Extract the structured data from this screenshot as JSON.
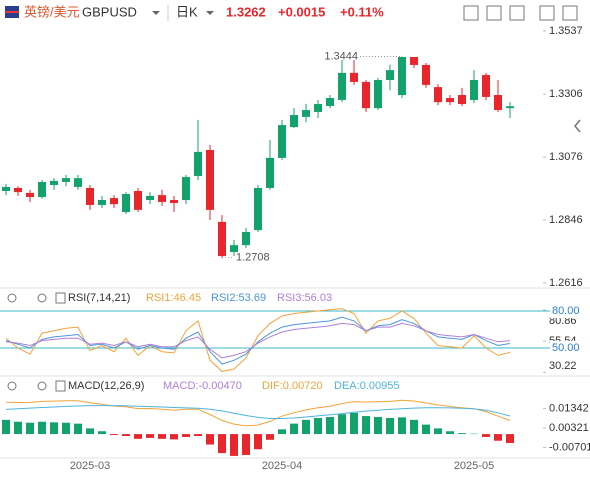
{
  "header": {
    "name": "英镑/美元",
    "symbol": "GBPUSD",
    "period": "日K",
    "price": "1.3262",
    "change": "+0.0015",
    "change_pct": "+0.11%"
  },
  "chart_data": [
    {
      "type": "candlestick",
      "up_color": "#13a26b",
      "down_color": "#e8262c",
      "categories": [
        null,
        null,
        null,
        null,
        null,
        null,
        null,
        "2025-03",
        null,
        null,
        null,
        null,
        null,
        null,
        null,
        null,
        null,
        null,
        null,
        null,
        null,
        null,
        null,
        "2025-04",
        null,
        null,
        null,
        null,
        null,
        null,
        null,
        null,
        null,
        null,
        null,
        null,
        null,
        null,
        null,
        "2025-05",
        null,
        null,
        null
      ],
      "open": [
        1.2952,
        1.2963,
        1.2945,
        1.293,
        1.2974,
        1.2985,
        1.2967,
        1.2963,
        1.2901,
        1.2926,
        1.2875,
        1.2952,
        1.2919,
        1.2937,
        1.2919,
        1.2919,
        1.3007,
        1.3102,
        1.2839,
        1.2729,
        1.2754,
        1.2809,
        1.2963,
        1.3073,
        1.3186,
        1.3223,
        1.3241,
        1.3263,
        1.3285,
        1.3384,
        1.3351,
        1.3255,
        1.3358,
        1.3303,
        1.3442,
        1.3413,
        1.3332,
        1.3292,
        1.3303,
        1.3285,
        1.3376,
        1.3303,
        1.3255
      ],
      "high": [
        1.2978,
        1.297,
        1.2956,
        1.2992,
        1.2999,
        1.3011,
        1.3011,
        1.2974,
        1.2934,
        1.2937,
        1.2948,
        1.2963,
        1.2948,
        1.2956,
        1.2934,
        1.3011,
        1.3212,
        1.312,
        1.2864,
        1.2773,
        1.2817,
        1.2974,
        1.3138,
        1.3212,
        1.3255,
        1.327,
        1.3285,
        1.3303,
        1.3431,
        1.3431,
        1.3358,
        1.3365,
        1.3413,
        1.3444,
        1.3442,
        1.342,
        1.3343,
        1.3303,
        1.3329,
        1.3394,
        1.3384,
        1.3358,
        1.3277
      ],
      "low": [
        1.2937,
        1.2934,
        1.2912,
        1.2923,
        1.2956,
        1.297,
        1.2956,
        1.2883,
        1.289,
        1.289,
        1.2868,
        1.2875,
        1.2904,
        1.2897,
        1.2875,
        1.2904,
        1.2992,
        1.2846,
        1.2708,
        1.2714,
        1.2743,
        1.2802,
        1.2956,
        1.3065,
        1.3182,
        1.3204,
        1.3219,
        1.3255,
        1.3277,
        1.334,
        1.3241,
        1.3248,
        1.3321,
        1.3292,
        1.3402,
        1.3329,
        1.3266,
        1.3266,
        1.3263,
        1.3274,
        1.3285,
        1.3241,
        1.3219
      ],
      "close": [
        1.2967,
        1.2948,
        1.293,
        1.2985,
        1.2989,
        1.2999,
        1.2999,
        1.2901,
        1.2919,
        1.2904,
        1.2941,
        1.2883,
        1.2934,
        1.2912,
        1.2908,
        1.3003,
        1.3095,
        1.2883,
        1.2714,
        1.2754,
        1.2802,
        1.2963,
        1.3073,
        1.3193,
        1.323,
        1.3248,
        1.327,
        1.3292,
        1.3384,
        1.3351,
        1.3255,
        1.3358,
        1.3394,
        1.3442,
        1.3413,
        1.334,
        1.3277,
        1.3277,
        1.327,
        1.3358,
        1.3296,
        1.3248,
        1.3262
      ],
      "ylim": [
        1.259,
        1.357
      ],
      "yticks": [
        1.3537,
        1.3306,
        1.3076,
        1.2846,
        1.2616
      ]
    },
    {
      "type": "line",
      "title": "RSI(7,14,21)",
      "ylim": [
        28.1,
        84.9
      ],
      "yticks": [
        30.22,
        55.54,
        80.86
      ],
      "levels": [
        {
          "value": 80,
          "label": "80.00"
        },
        {
          "value": 50,
          "label": "50.00"
        }
      ],
      "level_color": "#3bb8c9",
      "series": [
        {
          "name": "RSI1",
          "color": "#f2a33a",
          "values": [
            58,
            50,
            45,
            62,
            64,
            66,
            67,
            48,
            52,
            47,
            58,
            44,
            52,
            47,
            46,
            64,
            72,
            40,
            31,
            33,
            42,
            60,
            70,
            76,
            78,
            79,
            80,
            81,
            82,
            78,
            62,
            72,
            74,
            80,
            74,
            62,
            52,
            51,
            50,
            60,
            50,
            44,
            46.45
          ]
        },
        {
          "name": "RSI2",
          "color": "#4c96dc",
          "values": [
            56,
            53,
            50,
            57,
            59,
            60,
            61,
            52,
            53,
            50,
            55,
            49,
            52,
            50,
            49,
            58,
            63,
            47,
            37,
            40,
            45,
            55,
            62,
            67,
            69,
            70,
            71,
            72,
            75,
            72,
            64,
            68,
            69,
            73,
            70,
            64,
            59,
            58,
            57,
            61,
            56,
            52,
            53.69
          ]
        },
        {
          "name": "RSI3",
          "color": "#b07fd8",
          "values": [
            55,
            54,
            52,
            56,
            57,
            58,
            58,
            53,
            54,
            52,
            55,
            51,
            53,
            51,
            51,
            56,
            59,
            49,
            42,
            44,
            47,
            54,
            59,
            63,
            65,
            66,
            67,
            68,
            70,
            69,
            64,
            67,
            67,
            70,
            68,
            64,
            61,
            60,
            59,
            61,
            58,
            55,
            56.03
          ]
        }
      ]
    },
    {
      "type": "combo",
      "title": "MACD(12,26,9)",
      "ylim": [
        -0.0126,
        0.0206
      ],
      "yticks": [
        0.01342,
        0.00321,
        -0.00701
      ],
      "series": [
        {
          "name": "MACD",
          "type": "bar",
          "up_color": "#13a26b",
          "down_color": "#e8262c",
          "color": "#b07fd8",
          "values": [
            0.0075,
            0.0065,
            0.006,
            0.0065,
            0.0062,
            0.006,
            0.0055,
            0.003,
            0.0015,
            -0.0005,
            -0.001,
            -0.0025,
            -0.002,
            -0.0025,
            -0.0028,
            -0.0015,
            -0.001,
            -0.0055,
            -0.01,
            -0.0115,
            -0.011,
            -0.008,
            -0.003,
            0.0025,
            0.0055,
            0.0075,
            0.0085,
            0.009,
            0.0105,
            0.0112,
            0.0095,
            0.009,
            0.0085,
            0.0088,
            0.0075,
            0.005,
            0.003,
            0.0015,
            0.0005,
            0.0002,
            -0.0015,
            -0.0035,
            -0.0047
          ],
          "value_labels": [
            null,
            null,
            null,
            null,
            null,
            null,
            null,
            null,
            null,
            null,
            null,
            null,
            null,
            null,
            null,
            null,
            null,
            null,
            null,
            null,
            null,
            null,
            null,
            null,
            null,
            null,
            null,
            null,
            null,
            null,
            null,
            null,
            null,
            null,
            null,
            null,
            null,
            null,
            null,
            null,
            null,
            null,
            "-0.00470"
          ]
        },
        {
          "name": "DIF",
          "type": "line",
          "color": "#f2a33a",
          "values": [
            0.01675,
            0.01665,
            0.0167,
            0.01725,
            0.0174,
            0.0176,
            0.01755,
            0.0165,
            0.01575,
            0.01475,
            0.0144,
            0.01345,
            0.0135,
            0.01305,
            0.0126,
            0.01305,
            0.0131,
            0.01035,
            0.0072,
            0.00525,
            0.0043,
            0.0048,
            0.0067,
            0.00945,
            0.01125,
            0.01275,
            0.01385,
            0.0147,
            0.01605,
            0.0171,
            0.01685,
            0.0171,
            0.01725,
            0.0178,
            0.01745,
            0.0164,
            0.0154,
            0.01455,
            0.01385,
            0.0134,
            0.01185,
            0.00945,
            0.0072
          ],
          "value_labels": [
            null,
            null,
            null,
            null,
            null,
            null,
            null,
            null,
            null,
            null,
            null,
            null,
            null,
            null,
            null,
            null,
            null,
            null,
            null,
            null,
            null,
            null,
            null,
            null,
            null,
            null,
            null,
            null,
            null,
            null,
            null,
            null,
            null,
            null,
            null,
            null,
            null,
            null,
            null,
            null,
            null,
            null,
            "0.00720"
          ]
        },
        {
          "name": "DEA",
          "type": "line",
          "color": "#4fb3e0",
          "values": [
            0.013,
            0.0134,
            0.0137,
            0.014,
            0.0143,
            0.0146,
            0.0148,
            0.015,
            0.015,
            0.015,
            0.0149,
            0.0147,
            0.0145,
            0.0143,
            0.014,
            0.0138,
            0.0136,
            0.0131,
            0.0122,
            0.011,
            0.0098,
            0.0088,
            0.0082,
            0.0082,
            0.0085,
            0.009,
            0.0096,
            0.0102,
            0.0108,
            0.0115,
            0.0121,
            0.0126,
            0.013,
            0.0134,
            0.0137,
            0.0139,
            0.0139,
            0.0138,
            0.0136,
            0.0133,
            0.0126,
            0.0112,
            0.00955
          ]
        }
      ]
    }
  ]
}
